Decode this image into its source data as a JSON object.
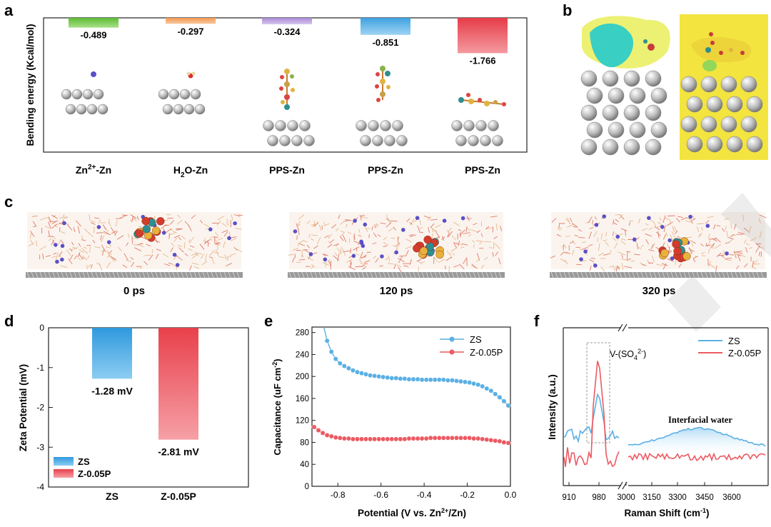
{
  "colors": {
    "green": "#7dcc56",
    "orange": "#f5a96b",
    "purple": "#b9a3dc",
    "blue": "#5ab0e4",
    "red": "#ec5a62",
    "zinc": "#b4b4b4",
    "cyan": "#3fd1c4",
    "yellow": "#f4e64c"
  },
  "panel_labels": {
    "a": "a",
    "b": "b",
    "c": "c",
    "d": "d",
    "e": "e",
    "f": "f"
  },
  "panel_c": {
    "labels": [
      "0 ps",
      "120 ps",
      "320 ps"
    ]
  },
  "chart_data": [
    {
      "panel": "a",
      "type": "bar",
      "ylabel": "Bending energy (Kcal/mol)",
      "categories": [
        "Zn2+-Zn",
        "H2O-Zn",
        "PPS-Zn",
        "PPS-Zn",
        "PPS-Zn"
      ],
      "category_display": [
        {
          "main": "Zn",
          "sup": "2+",
          "sub": "",
          "rest": "-Zn"
        },
        {
          "main": "H",
          "sup": "",
          "sub": "2",
          "rest": "O-Zn"
        },
        {
          "main": "PPS-Zn",
          "sup": "",
          "sub": "",
          "rest": ""
        },
        {
          "main": "PPS-Zn",
          "sup": "",
          "sub": "",
          "rest": ""
        },
        {
          "main": "PPS-Zn",
          "sup": "",
          "sub": "",
          "rest": ""
        }
      ],
      "values": [
        -0.489,
        -0.297,
        -0.324,
        -0.851,
        -1.766
      ],
      "value_labels": [
        "-0.489",
        "-0.297",
        "-0.324",
        "-0.851",
        "-1.766"
      ],
      "ylim": [
        -2.4,
        0
      ]
    },
    {
      "panel": "d",
      "type": "bar",
      "ylabel": "Zeta Potential (mV)",
      "categories": [
        "ZS",
        "Z-0.05P"
      ],
      "values": [
        -1.28,
        -2.81
      ],
      "value_labels": [
        "-1.28 mV",
        "-2.81 mV"
      ],
      "yticks": [
        "0",
        "-1",
        "-2",
        "-3",
        "-4"
      ],
      "ylim": [
        -4,
        0
      ],
      "legend": [
        "ZS",
        "Z-0.05P"
      ],
      "legend_position": "bottom-left"
    },
    {
      "panel": "e",
      "type": "line",
      "xlabel": "Potential (V vs. Zn2+/Zn)",
      "xlabel_parts": {
        "pre": "Potential (V vs. Zn",
        "sup": "2+",
        "post": "/Zn)"
      },
      "ylabel": "Capacitance (uF cm-2)",
      "ylabel_parts": {
        "pre": "Capacitance (uF cm",
        "sup": "-2",
        "post": ")"
      },
      "xlim": [
        -0.92,
        0.0
      ],
      "ylim": [
        0,
        290
      ],
      "xticks": [
        "-0.8",
        "-0.6",
        "-0.4",
        "-0.2",
        "0.0"
      ],
      "yticks": [
        "0",
        "40",
        "80",
        "120",
        "160",
        "200",
        "240",
        "280"
      ],
      "legend_position": "top-right",
      "series": [
        {
          "name": "ZS",
          "x": [
            -0.85,
            -0.83,
            -0.81,
            -0.79,
            -0.77,
            -0.75,
            -0.73,
            -0.71,
            -0.69,
            -0.67,
            -0.65,
            -0.63,
            -0.61,
            -0.59,
            -0.57,
            -0.55,
            -0.53,
            -0.51,
            -0.49,
            -0.47,
            -0.45,
            -0.43,
            -0.41,
            -0.39,
            -0.37,
            -0.35,
            -0.33,
            -0.31,
            -0.29,
            -0.27,
            -0.25,
            -0.23,
            -0.21,
            -0.19,
            -0.17,
            -0.15,
            -0.13,
            -0.11,
            -0.09,
            -0.07,
            -0.05,
            -0.03,
            -0.01
          ],
          "y": [
            265,
            245,
            232,
            224,
            219,
            215,
            211,
            208,
            206,
            204,
            202,
            201,
            200,
            199,
            198,
            197,
            197,
            196,
            196,
            195,
            195,
            195,
            194,
            194,
            194,
            194,
            194,
            194,
            193,
            193,
            192,
            191,
            190,
            189,
            187,
            185,
            182,
            178,
            174,
            168,
            162,
            155,
            147
          ]
        },
        {
          "name": "Z-0.05P",
          "x": [
            -0.91,
            -0.89,
            -0.87,
            -0.85,
            -0.83,
            -0.81,
            -0.79,
            -0.77,
            -0.75,
            -0.73,
            -0.71,
            -0.69,
            -0.67,
            -0.65,
            -0.63,
            -0.61,
            -0.59,
            -0.57,
            -0.55,
            -0.53,
            -0.51,
            -0.49,
            -0.47,
            -0.45,
            -0.43,
            -0.41,
            -0.39,
            -0.37,
            -0.35,
            -0.33,
            -0.31,
            -0.29,
            -0.27,
            -0.25,
            -0.23,
            -0.21,
            -0.19,
            -0.17,
            -0.15,
            -0.13,
            -0.11,
            -0.09,
            -0.07,
            -0.05,
            -0.03,
            -0.01
          ],
          "y": [
            108,
            102,
            97,
            93,
            91,
            89,
            88,
            87,
            87,
            86,
            86,
            86,
            86,
            86,
            86,
            86,
            86,
            86,
            86,
            86,
            86,
            86,
            87,
            87,
            87,
            87,
            87,
            88,
            88,
            88,
            88,
            88,
            88,
            88,
            88,
            88,
            88,
            87,
            87,
            86,
            85,
            84,
            83,
            82,
            80,
            79
          ]
        }
      ]
    },
    {
      "panel": "f",
      "type": "line",
      "xlabel": "Raman Shift (cm-1)",
      "xlabel_parts": {
        "pre": "Raman Shift (cm",
        "sup": "-1",
        "post": ")"
      },
      "ylabel": "Intensity (a.u.)",
      "xticks": [
        "910",
        "980",
        "3000",
        "3150",
        "3300",
        "3450",
        "3600"
      ],
      "legend_position": "top-right",
      "annotations": {
        "peak_label": "V-(SO4 2-)",
        "peak_parts": {
          "pre": "V-(SO",
          "sub": "4",
          "sup": "2-",
          "post": ")"
        },
        "band_label": "Interfacial water"
      },
      "series": [
        {
          "name": "ZS"
        },
        {
          "name": "Z-0.05P"
        }
      ]
    }
  ]
}
